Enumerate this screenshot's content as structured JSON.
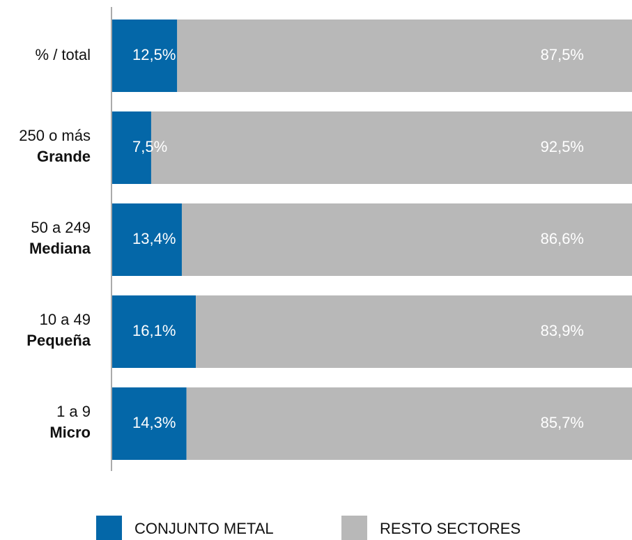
{
  "chart_data": {
    "type": "stacked_hbar",
    "categories": [
      "% /  total",
      "250 o más",
      "50 a 249",
      "10 a 49",
      "1 a 9"
    ],
    "category_names": [
      null,
      "Grande",
      "Mediana",
      "Pequeña",
      "Micro"
    ],
    "series": [
      {
        "name": "CONJUNTO METAL",
        "color": "#0467a8",
        "values": [
          12.5,
          7.5,
          13.4,
          16.1,
          14.3
        ],
        "value_labels": [
          "12,5%",
          "7,5%",
          "13,4%",
          "16,1%",
          "14,3%"
        ]
      },
      {
        "name": "RESTO SECTORES",
        "color": "#b8b8b8",
        "values": [
          87.5,
          92.5,
          86.6,
          83.9,
          85.7
        ],
        "value_labels": [
          "87,5%",
          "92,5%",
          "86,6%",
          "83,9%",
          "85,7%"
        ]
      }
    ],
    "xlim": [
      0,
      100
    ]
  }
}
